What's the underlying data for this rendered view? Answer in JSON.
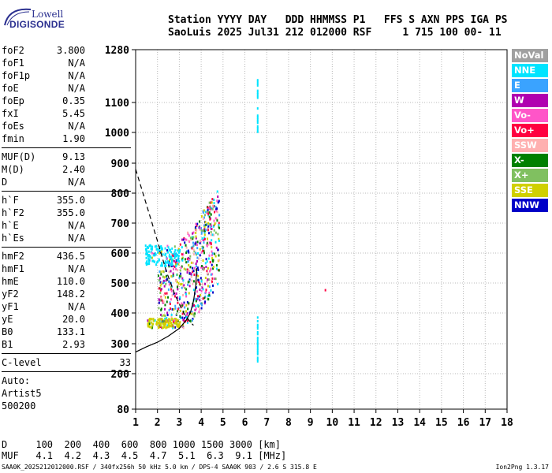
{
  "logo": {
    "top": "Lowell",
    "bottom": "DIGISONDE"
  },
  "header": {
    "line1": "Station YYYY DAY   DDD HHMMSS P1   FFS S AXN PPS IGA PS",
    "line2": "SaoLuis 2025 Jul31 212 012000 RSF     1 715 100 00- 11"
  },
  "params": [
    {
      "label": "foF2",
      "value": "3.800"
    },
    {
      "label": "foF1",
      "value": "N/A"
    },
    {
      "label": "foF1p",
      "value": "N/A"
    },
    {
      "label": "foE",
      "value": "N/A"
    },
    {
      "label": "foEp",
      "value": "0.35"
    },
    {
      "label": "fxI",
      "value": "5.45"
    },
    {
      "label": "foEs",
      "value": "N/A"
    },
    {
      "label": "fmin",
      "value": "1.90"
    },
    {
      "sep": true
    },
    {
      "label": "MUF(D)",
      "value": "9.13"
    },
    {
      "label": "M(D)",
      "value": "2.40"
    },
    {
      "label": "D",
      "value": "N/A"
    },
    {
      "sep": true
    },
    {
      "label": "h`F",
      "value": "355.0"
    },
    {
      "label": "h`F2",
      "value": "355.0"
    },
    {
      "label": "h`E",
      "value": "N/A"
    },
    {
      "label": "h`Es",
      "value": "N/A"
    },
    {
      "sep": true
    },
    {
      "label": "hmF2",
      "value": "436.5"
    },
    {
      "label": "hmF1",
      "value": "N/A"
    },
    {
      "label": "hmE",
      "value": "110.0"
    },
    {
      "label": "yF2",
      "value": "148.2"
    },
    {
      "label": "yF1",
      "value": "N/A"
    },
    {
      "label": "yE",
      "value": "20.0"
    },
    {
      "label": "B0",
      "value": "133.1"
    },
    {
      "label": "B1",
      "value": "2.93"
    },
    {
      "sep": true
    },
    {
      "label": "C-level",
      "value": "33",
      "wide": true
    },
    {
      "sep": true
    },
    {
      "text": "Auto:"
    },
    {
      "text": "Artist5"
    },
    {
      "text": "500200"
    }
  ],
  "legend": [
    {
      "label": "NoVal",
      "color": "#a0a0a0"
    },
    {
      "label": "NNE",
      "color": "#00e4ff"
    },
    {
      "label": "E",
      "color": "#3aa3ff"
    },
    {
      "label": "W",
      "color": "#b000b0"
    },
    {
      "label": "Vo-",
      "color": "#ff55c8"
    },
    {
      "label": "Vo+",
      "color": "#ff0040"
    },
    {
      "label": "SSW",
      "color": "#ffb0b0"
    },
    {
      "label": "X-",
      "color": "#008000"
    },
    {
      "label": "X+",
      "color": "#80c060"
    },
    {
      "label": "SSE",
      "color": "#d0d000"
    },
    {
      "label": "NNW",
      "color": "#0000c8"
    }
  ],
  "chart_data": {
    "type": "scatter",
    "xlim": [
      1,
      18
    ],
    "ylim": [
      80,
      1280
    ],
    "x_ticks": [
      1,
      2,
      3,
      4,
      5,
      6,
      7,
      8,
      9,
      10,
      11,
      12,
      13,
      14,
      15,
      16,
      17,
      18
    ],
    "y_ticks": [
      80,
      200,
      300,
      400,
      500,
      600,
      700,
      800,
      900,
      1000,
      1100,
      1280
    ],
    "grid": true,
    "profile_solid": [
      [
        1,
        272
      ],
      [
        1.5,
        290
      ],
      [
        2,
        305
      ],
      [
        2.5,
        325
      ],
      [
        3,
        350
      ],
      [
        3.3,
        375
      ],
      [
        3.5,
        400
      ],
      [
        3.65,
        440
      ],
      [
        3.75,
        490
      ],
      [
        3.8,
        550
      ]
    ],
    "trace_dashed": [
      [
        1,
        880
      ],
      [
        1.5,
        760
      ],
      [
        2,
        640
      ],
      [
        2.4,
        540
      ],
      [
        2.8,
        460
      ],
      [
        3.2,
        400
      ],
      [
        3.5,
        370
      ],
      [
        3.65,
        360
      ]
    ],
    "echo_clusters": [
      {
        "x": [
          2.0,
          4.8
        ],
        "y": [
          355,
          820
        ],
        "direction": "mixed"
      },
      {
        "x": [
          1.4,
          3.0
        ],
        "y": [
          560,
          630
        ],
        "direction": "NNE"
      },
      {
        "x": [
          1.5,
          3.0
        ],
        "y": [
          355,
          385
        ],
        "direction": "SSE"
      }
    ],
    "column_traces": [
      {
        "x": 6.55,
        "y": [
          1000,
          1180
        ],
        "direction": "NNE"
      },
      {
        "x": 6.55,
        "y": [
          245,
          400
        ],
        "direction": "NNE"
      },
      {
        "x": 9.65,
        "y": [
          480,
          485
        ],
        "direction": "Vo+"
      }
    ]
  },
  "footer": {
    "line1": "D     100  200  400  600  800 1000 1500 3000 [km]",
    "line2": "MUF   4.1  4.2  4.3  4.5  4.7  5.1  6.3  9.1 [MHz]",
    "credit": "SAA0K_2025212012000.RSF / 340fx256h 50 kHz 5.0 km / DPS-4 SAA0K 903 / 2.6 S 315.8 E",
    "version": "Ion2Png 1.3.17"
  }
}
